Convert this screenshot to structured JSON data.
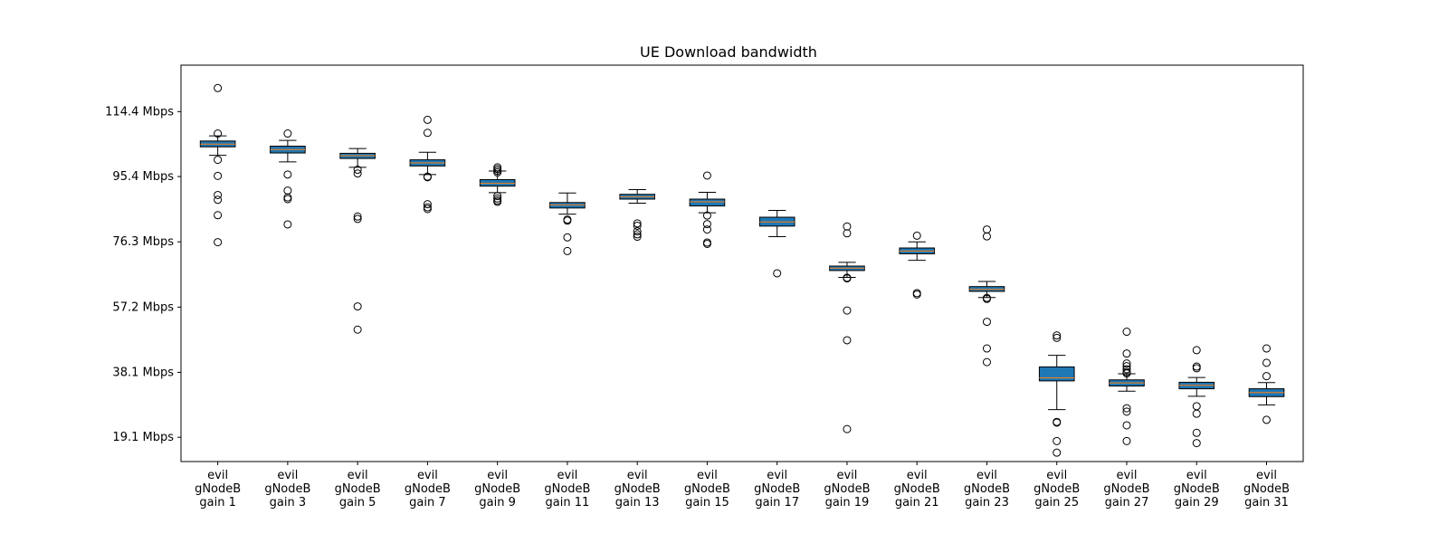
{
  "chart_data": {
    "type": "box",
    "title": "UE Download bandwidth",
    "xlabel": "",
    "ylabel": "",
    "ylim": [
      12,
      128
    ],
    "y_ticks": [
      {
        "value": 19.1,
        "label": "19.1 Mbps"
      },
      {
        "value": 38.1,
        "label": "38.1 Mbps"
      },
      {
        "value": 57.2,
        "label": "57.2 Mbps"
      },
      {
        "value": 76.3,
        "label": "76.3 Mbps"
      },
      {
        "value": 95.4,
        "label": "95.4 Mbps"
      },
      {
        "value": 114.4,
        "label": "114.4 Mbps"
      }
    ],
    "box_color": "#1f77b4",
    "median_color": "#ff7f0e",
    "grid": false,
    "categories": [
      [
        "evil",
        "gNodeB",
        "gain 1"
      ],
      [
        "evil",
        "gNodeB",
        "gain 3"
      ],
      [
        "evil",
        "gNodeB",
        "gain 5"
      ],
      [
        "evil",
        "gNodeB",
        "gain 7"
      ],
      [
        "evil",
        "gNodeB",
        "gain 9"
      ],
      [
        "evil",
        "gNodeB",
        "gain 11"
      ],
      [
        "evil",
        "gNodeB",
        "gain 13"
      ],
      [
        "evil",
        "gNodeB",
        "gain 15"
      ],
      [
        "evil",
        "gNodeB",
        "gain 17"
      ],
      [
        "evil",
        "gNodeB",
        "gain 19"
      ],
      [
        "evil",
        "gNodeB",
        "gain 21"
      ],
      [
        "evil",
        "gNodeB",
        "gain 23"
      ],
      [
        "evil",
        "gNodeB",
        "gain 25"
      ],
      [
        "evil",
        "gNodeB",
        "gain 27"
      ],
      [
        "evil",
        "gNodeB",
        "gain 29"
      ],
      [
        "evil",
        "gNodeB",
        "gain 31"
      ]
    ],
    "boxes": [
      {
        "whislo": 101.6,
        "q1": 104.1,
        "med": 104.9,
        "q3": 105.8,
        "whishi": 107.3,
        "fliers": [
          121.3,
          108.0,
          100.3,
          95.6,
          90.0,
          88.6,
          84.1,
          76.2
        ]
      },
      {
        "whislo": 99.7,
        "q1": 102.3,
        "med": 103.3,
        "q3": 104.3,
        "whishi": 106.0,
        "fliers": [
          108.0,
          96.0,
          91.3,
          89.3,
          88.8,
          81.4
        ]
      },
      {
        "whislo": 98.1,
        "q1": 100.7,
        "med": 101.5,
        "q3": 102.2,
        "whishi": 103.6,
        "fliers": [
          97.4,
          96.3,
          83.7,
          83.0,
          57.4,
          50.6
        ]
      },
      {
        "whislo": 96.0,
        "q1": 98.5,
        "med": 99.4,
        "q3": 100.3,
        "whishi": 102.5,
        "fliers": [
          112.0,
          108.2,
          95.4,
          95.2,
          87.3,
          86.4,
          85.9
        ]
      },
      {
        "whislo": 90.7,
        "q1": 92.6,
        "med": 93.4,
        "q3": 94.5,
        "whishi": 97.0,
        "fliers": [
          98.1,
          97.6,
          97.1,
          96.6,
          89.7,
          89.0,
          88.4,
          88.0
        ]
      },
      {
        "whislo": 84.4,
        "q1": 86.2,
        "med": 87.1,
        "q3": 87.8,
        "whishi": 90.6,
        "fliers": [
          82.8,
          82.5,
          77.6,
          73.6
        ]
      },
      {
        "whislo": 87.6,
        "q1": 88.8,
        "med": 89.5,
        "q3": 90.2,
        "whishi": 91.6,
        "fliers": [
          81.7,
          81.0,
          79.4,
          78.5,
          77.8
        ]
      },
      {
        "whislo": 84.8,
        "q1": 86.8,
        "med": 88.0,
        "q3": 88.8,
        "whishi": 90.8,
        "fliers": [
          95.7,
          84.0,
          81.5,
          79.9,
          76.1,
          75.7
        ]
      },
      {
        "whislo": 77.8,
        "q1": 80.9,
        "med": 82.1,
        "q3": 83.5,
        "whishi": 85.5,
        "fliers": [
          67.1
        ]
      },
      {
        "whislo": 65.9,
        "q1": 67.9,
        "med": 68.6,
        "q3": 69.2,
        "whishi": 70.3,
        "fliers": [
          80.8,
          78.8,
          65.8,
          65.6,
          56.2,
          47.5,
          21.5
        ]
      },
      {
        "whislo": 70.9,
        "q1": 72.8,
        "med": 73.6,
        "q3": 74.5,
        "whishi": 76.3,
        "fliers": [
          78.1,
          61.3,
          60.9
        ]
      },
      {
        "whislo": 60.0,
        "q1": 61.8,
        "med": 62.4,
        "q3": 63.2,
        "whishi": 64.7,
        "fliers": [
          79.9,
          77.9,
          59.9,
          59.6,
          52.9,
          45.1,
          41.1
        ]
      },
      {
        "whislo": 27.2,
        "q1": 35.6,
        "med": 36.5,
        "q3": 39.7,
        "whishi": 43.1,
        "fliers": [
          48.9,
          48.2,
          23.6,
          23.4,
          18.0,
          14.6
        ]
      },
      {
        "whislo": 32.6,
        "q1": 34.1,
        "med": 35.0,
        "q3": 35.9,
        "whishi": 37.7,
        "fliers": [
          50.0,
          43.6,
          40.7,
          39.9,
          39.0,
          38.2,
          37.8,
          27.6,
          26.6,
          22.6,
          18.0
        ]
      },
      {
        "whislo": 31.1,
        "q1": 33.3,
        "med": 34.3,
        "q3": 35.2,
        "whishi": 36.6,
        "fliers": [
          44.6,
          39.8,
          39.3,
          28.2,
          26.0,
          20.4,
          17.4
        ]
      },
      {
        "whislo": 28.6,
        "q1": 31.0,
        "med": 32.2,
        "q3": 33.3,
        "whishi": 35.1,
        "fliers": [
          45.1,
          40.9,
          37.0,
          24.2
        ]
      }
    ]
  }
}
